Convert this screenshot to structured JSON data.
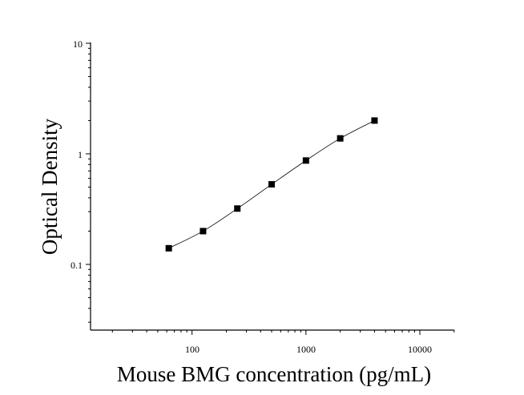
{
  "chart_data": {
    "type": "scatter",
    "title": "",
    "xlabel": "Mouse BMG concentration (pg/mL)",
    "ylabel": "Optical Density",
    "x_scale": "log",
    "y_scale": "log",
    "xlim": [
      10,
      20000
    ],
    "ylim": [
      0.025,
      10
    ],
    "x_tick_labels": [
      "100",
      "1000",
      "10000"
    ],
    "y_tick_labels": [
      "0.1",
      "1",
      "10"
    ],
    "grid": false,
    "legend": "none",
    "series": [
      {
        "marker": "square",
        "color": "#000000",
        "fit_curve": true,
        "x": [
          62.5,
          125,
          250,
          500,
          1000,
          2000,
          4000
        ],
        "y": [
          0.14,
          0.2,
          0.32,
          0.53,
          0.87,
          1.38,
          2.0
        ]
      }
    ]
  }
}
